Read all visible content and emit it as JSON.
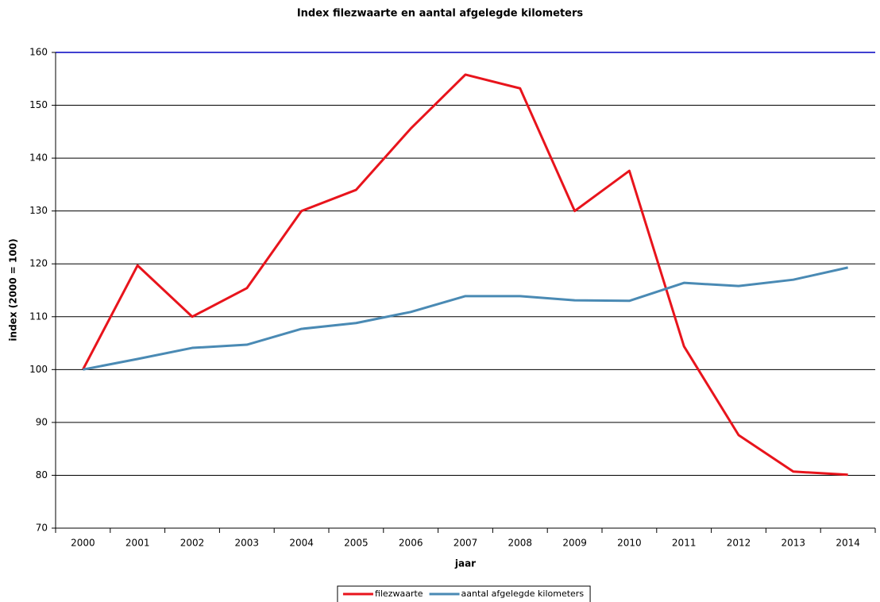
{
  "chart_data": {
    "type": "line",
    "title": "Index filezwaarte en aantal afgelegde kilometers",
    "x_label": "jaar",
    "y_label": "index (2000 = 100)",
    "categories": [
      "2000",
      "2001",
      "2002",
      "2003",
      "2004",
      "2005",
      "2006",
      "2007",
      "2008",
      "2009",
      "2010",
      "2011",
      "2012",
      "2013",
      "2014"
    ],
    "series": [
      {
        "name": "filezwaarte",
        "color": "#e8141c",
        "values": [
          100,
          119.7,
          110,
          115.4,
          130,
          134,
          145.6,
          155.8,
          153.2,
          130,
          137.6,
          104.4,
          87.6,
          80.7,
          80.1
        ]
      },
      {
        "name": "aantal afgelegde kilometers",
        "color": "#4a8ab4",
        "values": [
          100,
          102,
          104.1,
          104.7,
          107.7,
          108.8,
          110.9,
          113.9,
          113.9,
          113.1,
          113,
          116.4,
          115.8,
          117,
          119.3
        ]
      }
    ],
    "ylim": [
      70,
      160
    ],
    "yticks": [
      70,
      80,
      90,
      100,
      110,
      120,
      130,
      140,
      150,
      160
    ],
    "grid": true,
    "legend": "bottom"
  }
}
